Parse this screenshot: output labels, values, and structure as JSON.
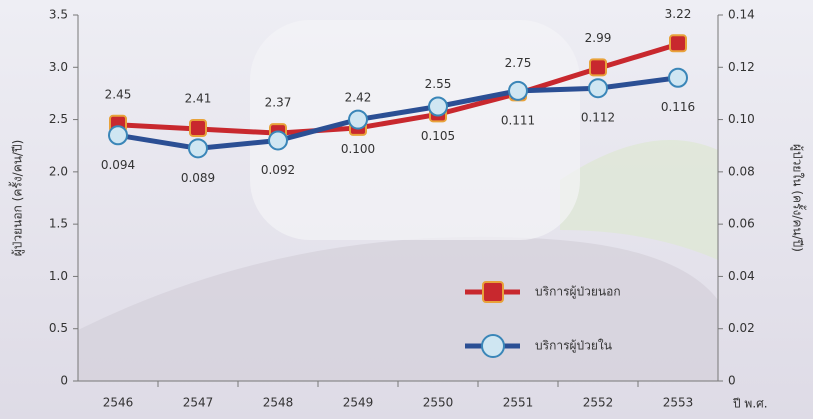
{
  "chart_data": {
    "type": "line",
    "categories": [
      "2546",
      "2547",
      "2548",
      "2549",
      "2550",
      "2551",
      "2552",
      "2553"
    ],
    "x_label": "ปี พ.ศ.",
    "y_label": "ผู้ป่วยนอก (ครั้ง/คน/ปี)",
    "y2_label": "ผู้ป่วยใน (ครั้ง/คน/ปี)",
    "series": [
      {
        "name": "บริการผู้ป่วยนอก",
        "color": "#c8282e",
        "values": [
          2.45,
          2.41,
          2.37,
          2.42,
          2.55,
          2.75,
          2.99,
          3.22
        ]
      },
      {
        "name": "บริการผู้ป่วยใน",
        "color": "#2b4f94",
        "axis": "y2",
        "values": [
          0.094,
          0.089,
          0.092,
          0.1,
          0.105,
          0.111,
          0.112,
          0.116
        ],
        "value_labels": [
          "0.094",
          "0.089",
          "0.092",
          "0.100",
          "0.105",
          "0.111",
          "0.112",
          "0.116"
        ]
      }
    ],
    "ylim": [
      0,
      3.5
    ],
    "yticks": [
      0,
      0.5,
      {
        "value": 1,
        "label": "1.0"
      },
      1.5,
      {
        "value": 2,
        "label": "2.0"
      },
      2.5,
      {
        "value": 3,
        "label": "3.0"
      },
      3.5
    ],
    "y2lim": [
      0,
      0.14
    ],
    "y2ticks": [
      0,
      0.02,
      0.04,
      0.06,
      0.08,
      {
        "value": 0.1,
        "label": "0.10"
      },
      0.12,
      0.14
    ]
  }
}
